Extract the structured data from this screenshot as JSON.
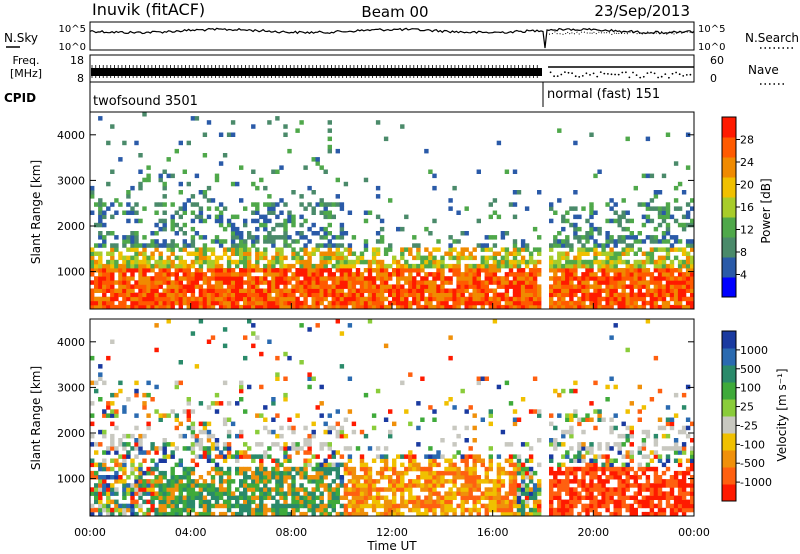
{
  "header": {
    "station": "Inuvik (fitACF)",
    "beam": "Beam 00",
    "date": "23/Sep/2013"
  },
  "noise_panel": {
    "left_label": "N.Sky",
    "left_ticks": [
      "10^5",
      "10^0"
    ],
    "right_label": "N.Search",
    "right_ticks": [
      "10^5",
      "10^0"
    ]
  },
  "freq_panel": {
    "left_label_line1": "Freq.",
    "left_label_line2": "[MHz]",
    "left_ticks": [
      "18",
      "8"
    ],
    "right_label": "Nave",
    "right_ticks": [
      "60",
      "0"
    ]
  },
  "cpid_panel": {
    "label": "CPID",
    "segments": [
      {
        "name": "twofsound 3501"
      },
      {
        "name": "normal (fast) 151"
      }
    ]
  },
  "chart_data": [
    {
      "type": "heatmap",
      "panel": "power",
      "ylabel": "Slant Range [km]",
      "y_ticks": [
        "1000",
        "2000",
        "3000",
        "4000"
      ],
      "ylim": [
        180,
        4500
      ],
      "xlim": [
        0,
        24
      ],
      "colorbar_label": "Power [dB]",
      "colorbar_ticks": [
        "4",
        "8",
        "12",
        "16",
        "20",
        "24",
        "28"
      ],
      "colorbar_range": [
        0,
        30
      ],
      "colorbar_colors": [
        "#0000ff",
        "#2a5aa8",
        "#4a8a6a",
        "#4fa84a",
        "#a8cc2a",
        "#f0c000",
        "#f08a00",
        "#ff5a00",
        "#ff1a00"
      ]
    },
    {
      "type": "heatmap",
      "panel": "velocity",
      "ylabel": "Slant Range [km]",
      "y_ticks": [
        "1000",
        "2000",
        "3000",
        "4000"
      ],
      "ylim": [
        180,
        4500
      ],
      "xlim": [
        0,
        24
      ],
      "xlabel": "Time UT",
      "x_ticks": [
        "00:00",
        "04:00",
        "08:00",
        "12:00",
        "16:00",
        "20:00",
        "00:00"
      ],
      "colorbar_label": "Velocity [m s⁻¹]",
      "colorbar_ticks": [
        "1000",
        "500",
        "100",
        "25",
        "-25",
        "-100",
        "-500",
        "-1000"
      ],
      "colorbar_colors": [
        "#1a3aa0",
        "#2a6ab0",
        "#2a8a6a",
        "#3faa3a",
        "#8acc3a",
        "#c8c8c0",
        "#f0c000",
        "#f0900a",
        "#ff6010",
        "#ff1a00"
      ]
    }
  ]
}
